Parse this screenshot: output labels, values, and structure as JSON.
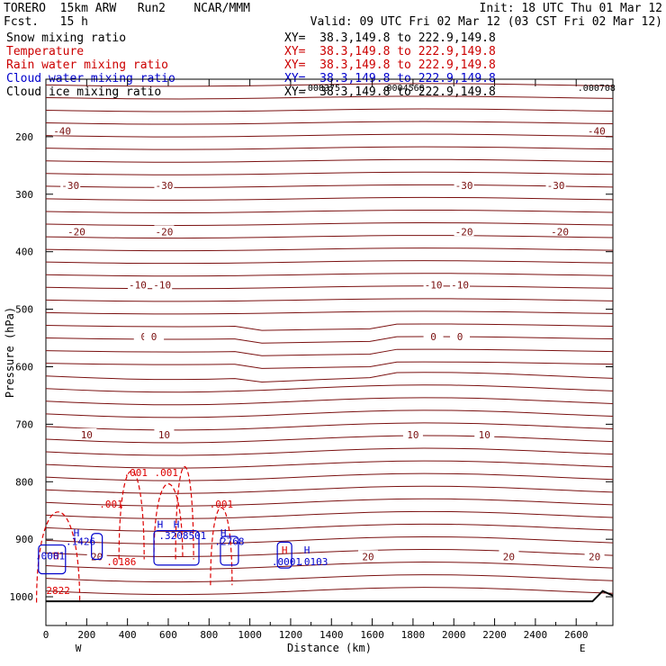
{
  "header": {
    "model": "TORERO  15km ARW   Run2    NCAR/MMM",
    "init": "Init: 18 UTC Thu 01 Mar 12",
    "fcst": "Fcst.   15 h",
    "valid": "Valid: 09 UTC Fri 02 Mar 12 (03 CST Fri 02 Mar 12)"
  },
  "fields": [
    {
      "name": "Snow mixing ratio",
      "xy": "XY=  38.3,149.8 to 222.9,149.8",
      "color": "#000000"
    },
    {
      "name": "Temperature",
      "xy": "XY=  38.3,149.8 to 222.9,149.8",
      "color": "#cc0000"
    },
    {
      "name": "Rain water mixing ratio",
      "xy": "XY=  38.3,149.8 to 222.9,149.8",
      "color": "#cc0000"
    },
    {
      "name": "Cloud water mixing ratio",
      "xy": "XY=  38.3,149.8 to 222.9,149.8",
      "color": "#0000cc"
    },
    {
      "name": "Cloud ice mixing ratio",
      "xy": "XY=  38.3,149.8 to 222.9,149.8",
      "color": "#000000"
    }
  ],
  "chart_data": {
    "type": "contour-cross-section",
    "xlabel": "Distance (km)",
    "ylabel": "Pressure (hPa)",
    "xlim": [
      0,
      2780
    ],
    "ylim": [
      1050,
      100
    ],
    "xticks": [
      0,
      200,
      400,
      600,
      800,
      1000,
      1200,
      1400,
      1600,
      1800,
      2000,
      2200,
      2400,
      2600
    ],
    "yticks": [
      200,
      300,
      400,
      500,
      600,
      700,
      800,
      900,
      1000
    ],
    "endpoints": {
      "left": "W",
      "right": "E"
    },
    "temperature_contours": [
      {
        "label": "-40",
        "label_x": [
          80,
          2700
        ],
        "p": 190
      },
      {
        "label": "-30",
        "label_x": [
          120,
          580,
          2050,
          2500
        ],
        "p": 285
      },
      {
        "label": "-20",
        "label_x": [
          150,
          580,
          2050,
          2520
        ],
        "p": 365
      },
      {
        "label": "-10",
        "label_x": [
          450,
          570,
          1900,
          2030
        ],
        "p": 458
      },
      {
        "label": "0",
        "label_x": [
          480,
          530,
          1900,
          2030
        ],
        "p": 548
      },
      {
        "label": "10",
        "label_x": [
          200,
          580,
          1800,
          2150
        ],
        "p": 718
      },
      {
        "label": "20",
        "label_x": [
          250,
          1580,
          2270,
          2690
        ],
        "p": 930
      }
    ],
    "rain_labels": [
      {
        "text": ".001",
        "x": 320,
        "p": 845
      },
      {
        "text": ".001",
        "x": 440,
        "p": 790
      },
      {
        "text": ".001",
        "x": 590,
        "p": 790
      },
      {
        "text": ".001",
        "x": 860,
        "p": 845
      },
      {
        "text": ".0186",
        "x": 370,
        "p": 945
      },
      {
        "text": "H",
        "x": 50,
        "p": 935
      },
      {
        "text": "2822",
        "x": 60,
        "p": 995
      },
      {
        "text": "H",
        "x": 1170,
        "p": 925
      }
    ],
    "cloud_water_labels": [
      {
        "text": "H",
        "x": 150,
        "p": 895
      },
      {
        "text": ".1426",
        "x": 170,
        "p": 910
      },
      {
        "text": "H",
        "x": 560,
        "p": 880
      },
      {
        "text": "H",
        "x": 640,
        "p": 880
      },
      {
        "text": ".3208501",
        "x": 670,
        "p": 900
      },
      {
        "text": "H",
        "x": 870,
        "p": 895
      },
      {
        "text": ".2768",
        "x": 900,
        "p": 910
      },
      {
        "text": ".0001",
        "x": 1180,
        "p": 945
      },
      {
        "text": "H",
        "x": 1280,
        "p": 925
      },
      {
        "text": ".0103",
        "x": 1310,
        "p": 945
      },
      {
        "text": ".0001",
        "x": 20,
        "p": 935
      }
    ],
    "snow_labels": [
      {
        "text": ".000375",
        "x": 1350,
        "p": 120
      },
      {
        "text": ".0004568",
        "x": 1750,
        "p": 120
      },
      {
        "text": ".000708",
        "x": 2700,
        "p": 120
      }
    ]
  }
}
